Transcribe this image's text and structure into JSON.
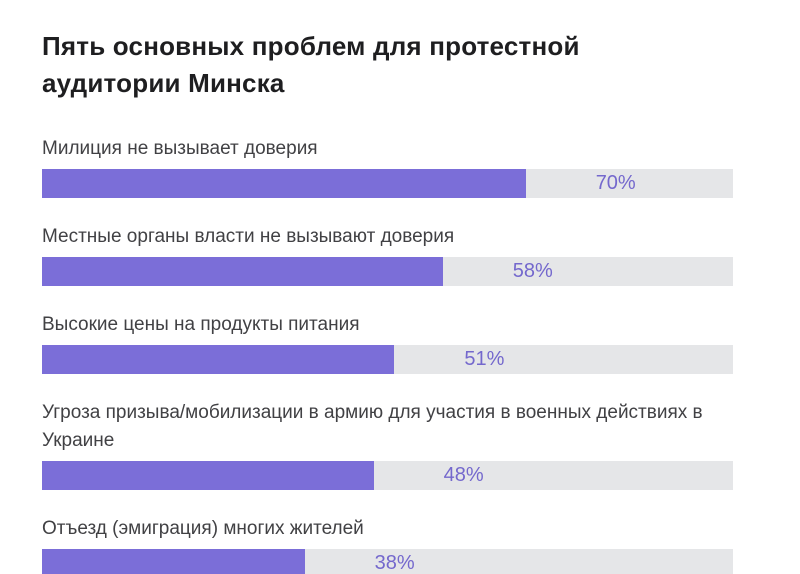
{
  "page": {
    "background": "#ffffff"
  },
  "colors": {
    "bar_fill": "#7b6ed8",
    "bar_track": "#e5e6e8",
    "value_text": "#7468cd",
    "label_text": "#414144",
    "title_text": "#1e1e20"
  },
  "chart_data": {
    "type": "bar",
    "orientation": "horizontal",
    "title": "Пять основных проблем для протестной аудитории Минска",
    "categories": [
      "Милиция не вызывает доверия",
      "Местные органы власти не вызывают доверия",
      "Высокие цены на продукты питания",
      "Угроза призыва/мобилизации в армию для участия в военных действиях в Украине",
      "Отъезд (эмиграция) многих жителей"
    ],
    "values": [
      70,
      58,
      51,
      48,
      38
    ],
    "value_labels": [
      "70%",
      "58%",
      "51%",
      "48%",
      "38%"
    ],
    "xlim": [
      0,
      100
    ],
    "unit": "%",
    "grid": false,
    "legend": false,
    "value_label_position": "right-of-bar-end-inside-track"
  }
}
